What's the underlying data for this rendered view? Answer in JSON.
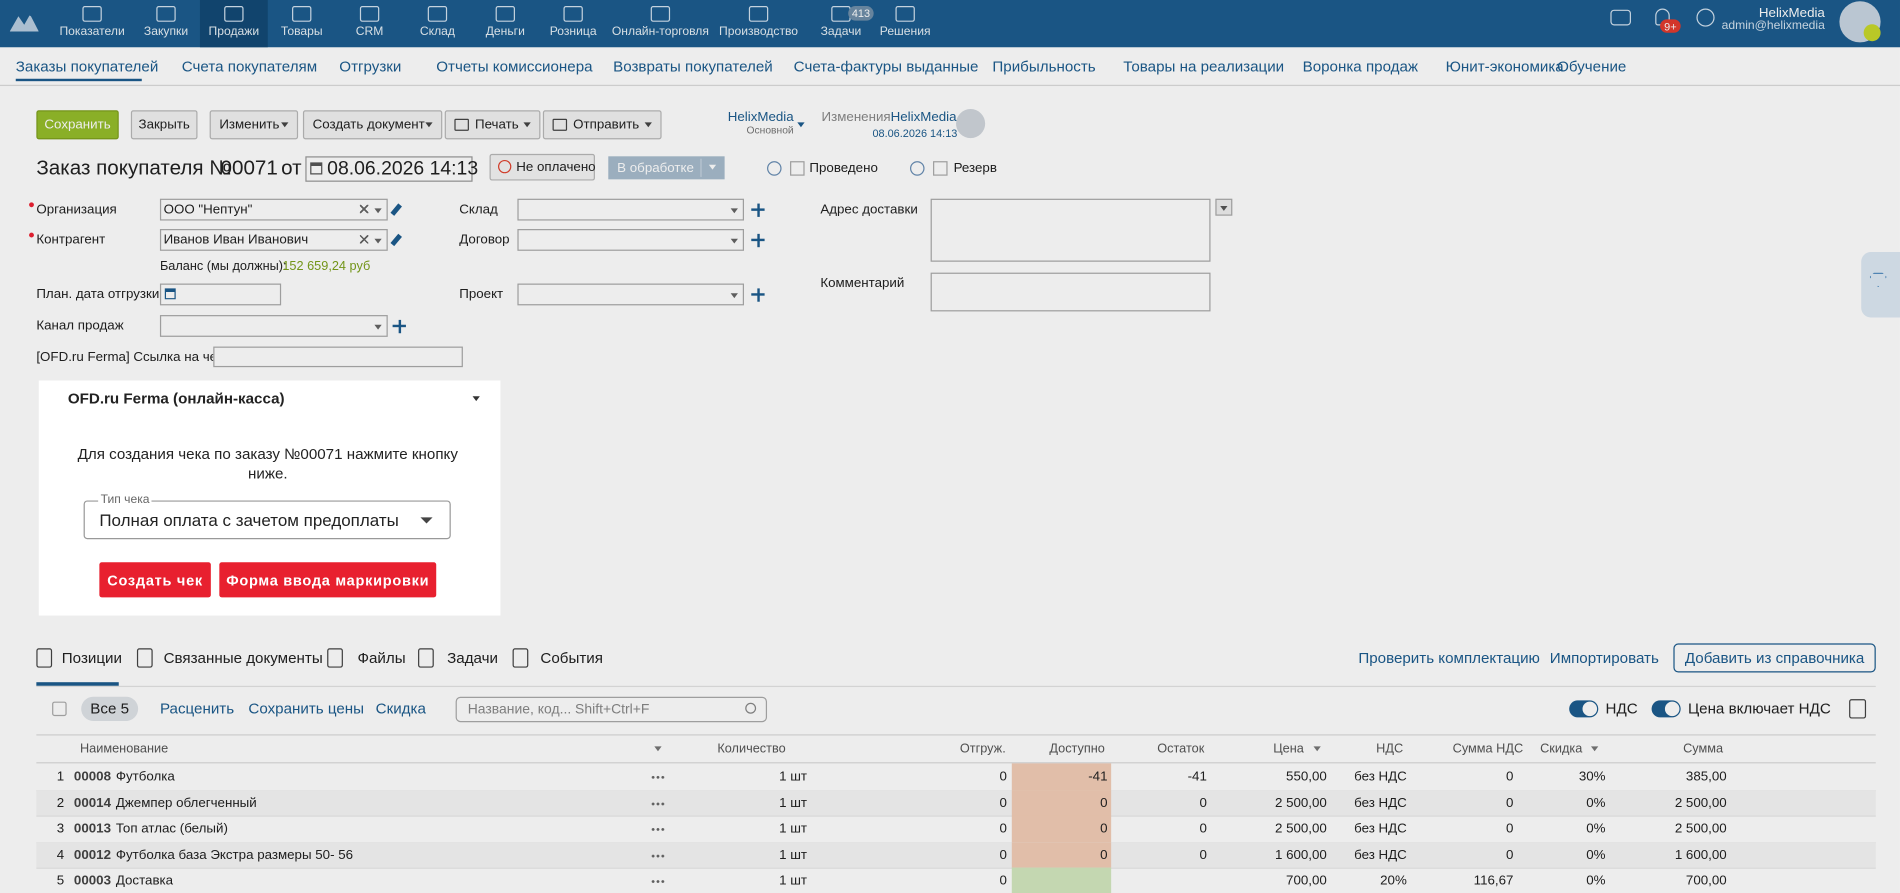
{
  "nav": {
    "items": [
      "Показатели",
      "Закупки",
      "Продажи",
      "Товары",
      "CRM",
      "Склад",
      "Деньги",
      "Розница",
      "Онлайн-торговля",
      "Производство",
      "Задачи",
      "Решения"
    ],
    "tasks_badge": "413",
    "notifications_badge": "9+",
    "user_name": "HelixMedia",
    "user_email": "admin@helixmedia"
  },
  "subnav": [
    "Заказы покупателей",
    "Счета покупателям",
    "Отгрузки",
    "Отчеты комиссионера",
    "Возвраты покупателей",
    "Счета-фактуры выданные",
    "Прибыльность",
    "Товары на реализации",
    "Воронка продаж",
    "Юнит-экономика",
    "Обучение"
  ],
  "toolbar": {
    "save": "Сохранить",
    "close": "Закрыть",
    "edit": "Изменить",
    "create_document": "Создать документ",
    "print": "Печать",
    "send": "Отправить",
    "owner": "HelixMedia",
    "owner_group": "Основной",
    "changes_label": "Изменения:",
    "changes_user": "HelixMedia",
    "changes_date": "08.06.2026 14:13"
  },
  "header": {
    "title": "Заказ покупателя №",
    "number": "00071",
    "from": "от",
    "date": "08.06.2026 14:13",
    "payment_status": "Не оплачено",
    "status": "В обработке",
    "posted": "Проведено",
    "reserve": "Резерв"
  },
  "form": {
    "organization_label": "Организация",
    "organization": "ООО \"Нептун\"",
    "counterparty_label": "Контрагент",
    "counterparty": "Иванов Иван Иванович",
    "balance_label": "Баланс (мы должны):",
    "balance": "152 659,24 руб",
    "ship_date_label": "План. дата отгрузки",
    "sales_channel_label": "Канал продаж",
    "ofd_link_label": "[OFD.ru Ferma] Ссылка на чек",
    "warehouse_label": "Склад",
    "contract_label": "Договор",
    "project_label": "Проект",
    "delivery_address_label": "Адрес доставки",
    "comment_label": "Комментарий"
  },
  "ofd_panel": {
    "title": "OFD.ru Ferma (онлайн-касса)",
    "message": "Для создания чека по заказу №00071 нажмите кнопку ниже.",
    "receipt_type_label": "Тип чека",
    "receipt_type": "Полная оплата с зачетом предоплаты",
    "create_receipt": "Создать чек",
    "marking_form": "Форма ввода маркировки"
  },
  "tabs": [
    "Позиции",
    "Связанные документы",
    "Файлы",
    "Задачи",
    "События"
  ],
  "tab_actions": [
    "Проверить комплектацию",
    "Импортировать",
    "Добавить из справочника"
  ],
  "positions_toolbar": {
    "all": "Все 5",
    "reprice": "Расценить",
    "save_prices": "Сохранить цены",
    "discount": "Скидка",
    "search_placeholder": "Название, код... Shift+Ctrl+F",
    "vat": "НДС",
    "price_includes_vat": "Цена включает НДС"
  },
  "table": {
    "columns": [
      "Наименование",
      "Количество",
      "Отгруж.",
      "Доступно",
      "Остаток",
      "Цена",
      "НДС",
      "Сумма НДС",
      "Скидка",
      "Сумма"
    ],
    "rows": [
      [
        "1",
        "00008",
        "Футболка",
        "1 шт",
        "0",
        "-41",
        "-41",
        "550,00",
        "без НДС",
        "0",
        "30%",
        "385,00"
      ],
      [
        "2",
        "00014",
        "Джемпер облегченный",
        "1 шт",
        "0",
        "0",
        "0",
        "2 500,00",
        "без НДС",
        "0",
        "0%",
        "2 500,00"
      ],
      [
        "3",
        "00013",
        "Топ атлас (белый)",
        "1 шт",
        "0",
        "0",
        "0",
        "2 500,00",
        "без НДС",
        "0",
        "0%",
        "2 500,00"
      ],
      [
        "4",
        "00012",
        "Футболка база Экстра размеры 50- 56",
        "1 шт",
        "0",
        "0",
        "0",
        "1 600,00",
        "без НДС",
        "0",
        "0%",
        "1 600,00"
      ],
      [
        "5",
        "00003",
        "Доставка",
        "1 шт",
        "0",
        null,
        null,
        "700,00",
        "20%",
        "116,67",
        "0%",
        "700,00"
      ]
    ]
  }
}
